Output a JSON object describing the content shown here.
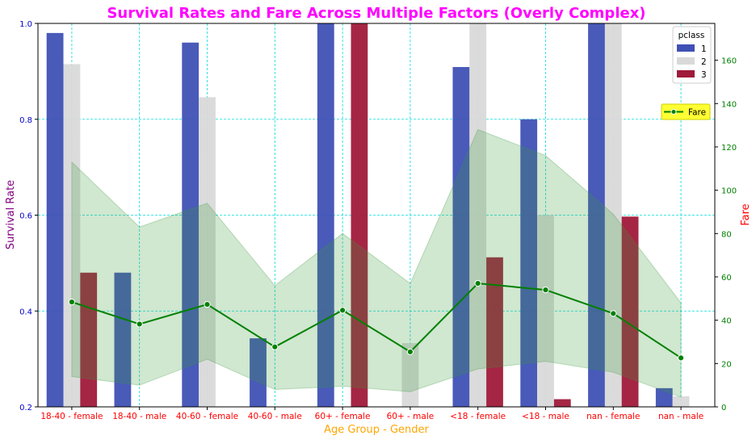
{
  "chart_data": {
    "type": "bar",
    "title": "Survival Rates and Fare Across Multiple Factors (Overly Complex)",
    "xlabel": "Age Group - Gender",
    "ylabel": "Survival Rate",
    "y2label": "Fare",
    "ylim": [
      0.2,
      1.0
    ],
    "y2lim": [
      0,
      177
    ],
    "yticks": [
      "0.2",
      "0.4",
      "0.6",
      "0.8",
      "1.0"
    ],
    "y2ticks": [
      "0",
      "20",
      "40",
      "60",
      "80",
      "100",
      "120",
      "140",
      "160"
    ],
    "categories": [
      "18-40 - female",
      "18-40 - male",
      "40-60 - female",
      "40-60 - male",
      "60+ - female",
      "60+ - male",
      "<18 - female",
      "<18 - male",
      "nan - female",
      "nan - male"
    ],
    "legend_title": "pclass",
    "legend_position": "top-right",
    "grid": true,
    "series": [
      {
        "name": "1",
        "color": "#3f51b5",
        "values": [
          0.98,
          0.48,
          0.96,
          0.343,
          1.0,
          null,
          0.909,
          0.8,
          1.0,
          0.239
        ]
      },
      {
        "name": "2",
        "color": "#d9d9d9",
        "values": [
          0.915,
          null,
          0.846,
          null,
          null,
          0.333,
          1.0,
          0.6,
          1.0,
          0.222
        ]
      },
      {
        "name": "3",
        "color": "#a01a3a",
        "values": [
          0.48,
          null,
          null,
          null,
          1.0,
          null,
          0.512,
          0.216,
          0.597,
          null
        ]
      }
    ],
    "line": {
      "name": "Fare",
      "color": "#008000",
      "values": [
        48.4,
        38.2,
        47.3,
        27.7,
        44.6,
        25.4,
        57.0,
        54.0,
        43.1,
        22.6
      ],
      "ci_low": [
        14.0,
        10.0,
        22.0,
        8.0,
        9.5,
        7.0,
        17.5,
        21.0,
        16.0,
        4.5
      ],
      "ci_high": [
        113.0,
        83.0,
        94.0,
        56.0,
        80.0,
        57.0,
        128.0,
        116.0,
        89.0,
        48.0
      ]
    }
  }
}
